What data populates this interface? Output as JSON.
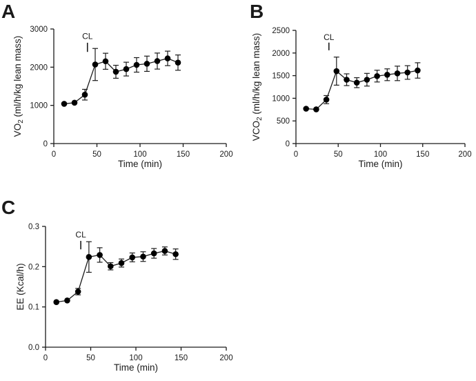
{
  "figure": {
    "background": "#ffffff",
    "line_color": "#1a1a1a",
    "marker_color": "#000000"
  },
  "chart_data": [
    {
      "type": "line",
      "panel": "A",
      "ylabel_pre": "VO",
      "ylabel_sub": "2",
      "ylabel_post": " (ml/h/kg lean mass)",
      "xlabel": "Time (min)",
      "xlim": [
        0,
        200
      ],
      "ylim": [
        0,
        3000
      ],
      "xticks": [
        0,
        50,
        100,
        150,
        200
      ],
      "xtick_labels": [
        "0",
        "50",
        "100",
        "150",
        "200"
      ],
      "yticks": [
        0,
        1000,
        2000,
        3000
      ],
      "ytick_labels": [
        "0",
        "1000",
        "2000",
        "3000"
      ],
      "grid": false,
      "legend": null,
      "annotation": {
        "text": "CL",
        "x": 39,
        "text_y": 2740,
        "line_y": [
          2400,
          2640
        ]
      },
      "x": [
        12,
        24,
        36,
        48,
        60,
        72,
        84,
        96,
        108,
        120,
        132,
        144
      ],
      "y": [
        1040,
        1070,
        1280,
        2070,
        2155,
        1880,
        1950,
        2060,
        2090,
        2160,
        2230,
        2120
      ],
      "yerr": [
        30,
        40,
        140,
        420,
        210,
        170,
        180,
        190,
        200,
        210,
        190,
        200
      ]
    },
    {
      "type": "line",
      "panel": "B",
      "ylabel_pre": "VCO",
      "ylabel_sub": "2",
      "ylabel_post": " (ml/h/kg lean mass)",
      "xlabel": "Time (min)",
      "xlim": [
        0,
        200
      ],
      "ylim": [
        0,
        2500
      ],
      "xticks": [
        0,
        50,
        100,
        150,
        200
      ],
      "xtick_labels": [
        "0",
        "50",
        "100",
        "150",
        "200"
      ],
      "yticks": [
        0,
        500,
        1000,
        1500,
        2000,
        2500
      ],
      "ytick_labels": [
        "0",
        "500",
        "1000",
        "1500",
        "2000",
        "2500"
      ],
      "grid": false,
      "legend": null,
      "annotation": {
        "text": "CL",
        "x": 39,
        "text_y": 2290,
        "line_y": [
          2060,
          2230
        ]
      },
      "x": [
        12,
        24,
        36,
        48,
        60,
        72,
        84,
        96,
        108,
        120,
        132,
        144
      ],
      "y": [
        770,
        755,
        970,
        1600,
        1410,
        1345,
        1410,
        1490,
        1520,
        1550,
        1570,
        1615
      ],
      "yerr": [
        25,
        30,
        90,
        310,
        130,
        110,
        140,
        130,
        130,
        160,
        150,
        170
      ]
    },
    {
      "type": "line",
      "panel": "C",
      "ylabel_pre": "EE (Kcal/h)",
      "ylabel_sub": "",
      "ylabel_post": "",
      "xlabel": "Time (min)",
      "xlim": [
        0,
        200
      ],
      "ylim": [
        0,
        0.3
      ],
      "xticks": [
        0,
        50,
        100,
        150,
        200
      ],
      "xtick_labels": [
        "0",
        "50",
        "100",
        "150",
        "200"
      ],
      "yticks": [
        0,
        0.1,
        0.2,
        0.3
      ],
      "ytick_labels": [
        "0.0",
        "0.1",
        "0.2",
        "0.3"
      ],
      "grid": false,
      "legend": null,
      "annotation": {
        "text": "CL",
        "x": 39,
        "text_y": 0.273,
        "line_y": [
          0.243,
          0.264
        ]
      },
      "x": [
        12,
        24,
        36,
        48,
        60,
        72,
        84,
        96,
        108,
        120,
        132,
        144
      ],
      "y": [
        0.112,
        0.116,
        0.138,
        0.224,
        0.229,
        0.201,
        0.209,
        0.223,
        0.225,
        0.233,
        0.239,
        0.231
      ],
      "yerr": [
        0.004,
        0.006,
        0.008,
        0.038,
        0.018,
        0.009,
        0.01,
        0.011,
        0.012,
        0.012,
        0.01,
        0.013
      ]
    }
  ]
}
